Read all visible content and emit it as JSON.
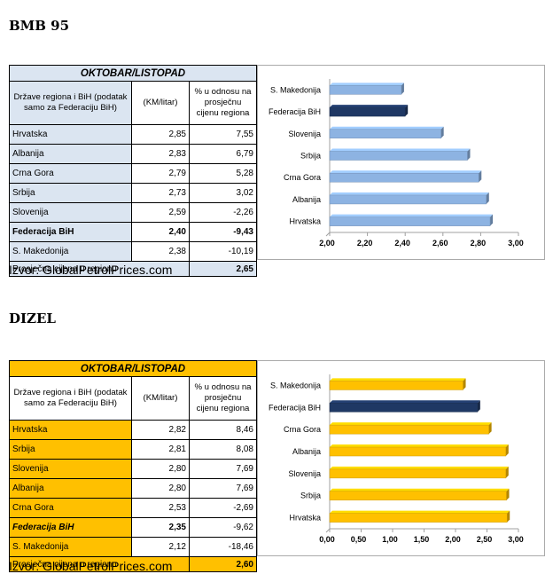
{
  "sections": [
    {
      "heading": "BMB 95",
      "table": {
        "title": "OKTOBAR/LISTOPAD",
        "headers": [
          "Države regiona i BiH (podatak samo za Federaciju BiH)",
          "(KM/litar)",
          "% u odnosu na prosječnu cijenu regiona"
        ],
        "rows": [
          {
            "country": "Hrvatska",
            "price": "2,85",
            "pct": "7,55"
          },
          {
            "country": "Albanija",
            "price": "2,83",
            "pct": "6,79"
          },
          {
            "country": "Crna Gora",
            "price": "2,79",
            "pct": "5,28"
          },
          {
            "country": "Srbija",
            "price": "2,73",
            "pct": "3,02"
          },
          {
            "country": "Slovenija",
            "price": "2,59",
            "pct": "-2,26"
          },
          {
            "country": "Federacija BiH",
            "price": "2,40",
            "pct": "-9,43"
          },
          {
            "country": "S. Makedonija",
            "price": "2,38",
            "pct": "-10,19"
          }
        ],
        "average_label": "Prosječna cijena u regionu",
        "average_value": "2,65"
      },
      "source": "Izvor: GlobalPetrolPrices.com"
    },
    {
      "heading": "DIZEL",
      "table": {
        "title": "OKTOBAR/LISTOPAD",
        "headers": [
          "Države regiona i BiH (podatak samo za Federaciju BiH)",
          "(KM/litar)",
          "% u odnosu na prosječnu cijenu regiona"
        ],
        "rows": [
          {
            "country": "Hrvatska",
            "price": "2,82",
            "pct": "8,46"
          },
          {
            "country": "Srbija",
            "price": "2,81",
            "pct": "8,08"
          },
          {
            "country": "Slovenija",
            "price": "2,80",
            "pct": "7,69"
          },
          {
            "country": "Albanija",
            "price": "2,80",
            "pct": "7,69"
          },
          {
            "country": "Crna Gora",
            "price": "2,53",
            "pct": "-2,69"
          },
          {
            "country": "Federacija BiH",
            "price": "2,35",
            "pct": "-9,62"
          },
          {
            "country": "S. Makedonija",
            "price": "2,12",
            "pct": "-18,46"
          }
        ],
        "average_label": "Prosječna cijena u regionu",
        "average_value": "2,60"
      },
      "source": "Izvor: GlobalPetrolPrices.com"
    }
  ],
  "chart_data": [
    {
      "type": "bar",
      "orientation": "horizontal",
      "categories": [
        "S. Makedonija",
        "Federacija BiH",
        "Slovenija",
        "Srbija",
        "Crna Gora",
        "Albanija",
        "Hrvatska"
      ],
      "values": [
        2.38,
        2.4,
        2.59,
        2.73,
        2.79,
        2.83,
        2.85
      ],
      "highlight": "Federacija BiH",
      "xlim": [
        2.0,
        3.0
      ],
      "ticks": [
        "2,00",
        "2,20",
        "2,40",
        "2,60",
        "2,80",
        "3,00"
      ],
      "tick_values": [
        2.0,
        2.2,
        2.4,
        2.6,
        2.8,
        3.0
      ],
      "bar_color": "#8db3e2",
      "highlight_color": "#1f3864"
    },
    {
      "type": "bar",
      "orientation": "horizontal",
      "categories": [
        "S. Makedonija",
        "Federacija BiH",
        "Crna Gora",
        "Albanija",
        "Slovenija",
        "Srbija",
        "Hrvatska"
      ],
      "values": [
        2.12,
        2.35,
        2.53,
        2.8,
        2.8,
        2.81,
        2.82
      ],
      "highlight": "Federacija BiH",
      "xlim": [
        0.0,
        3.0
      ],
      "ticks": [
        "0,00",
        "0,50",
        "1,00",
        "1,50",
        "2,00",
        "2,50",
        "3,00"
      ],
      "tick_values": [
        0,
        0.5,
        1.0,
        1.5,
        2.0,
        2.5,
        3.0
      ],
      "bar_color": "#ffc000",
      "highlight_color": "#1f3864"
    }
  ]
}
